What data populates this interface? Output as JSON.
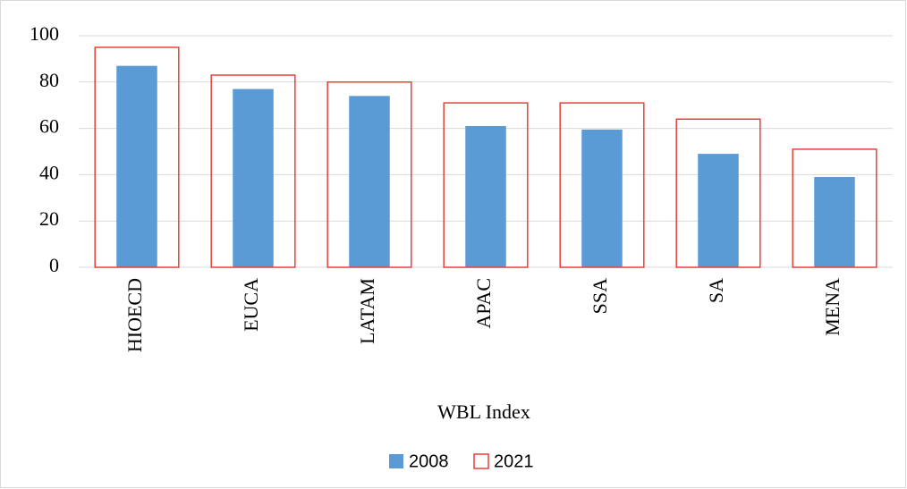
{
  "chart_data": {
    "type": "bar",
    "x_label": "WBL Index",
    "categories": [
      "HIOECD",
      "EUCA",
      "LATAM",
      "APAC",
      "SSA",
      "SA",
      "MENA"
    ],
    "series": [
      {
        "name": "2008",
        "color": "#5b9bd5",
        "style": "filled",
        "values": [
          87,
          77,
          74,
          61,
          59.5,
          49,
          39
        ]
      },
      {
        "name": "2021",
        "color": "#e8413c",
        "style": "outline",
        "values": [
          95,
          83,
          80,
          71,
          71,
          64,
          51
        ]
      }
    ],
    "ylim": [
      0,
      100
    ],
    "yticks": [
      0,
      20,
      40,
      60,
      80,
      100
    ],
    "grid": true,
    "legend": "bottom"
  }
}
